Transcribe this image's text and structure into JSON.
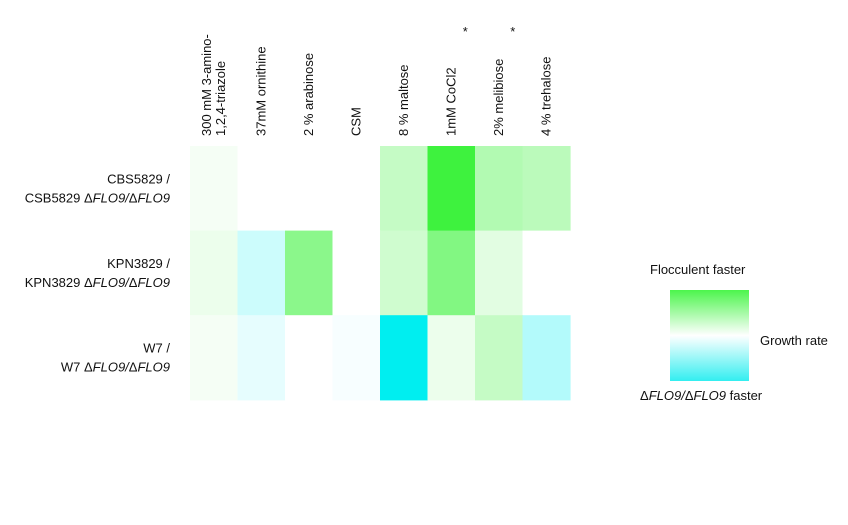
{
  "chart_data": {
    "type": "heatmap",
    "columns": [
      {
        "label": "300 mM 3-amino-1,2,4-triazole",
        "lines": [
          "300 mM 3-amino-",
          "1,2,4-triazole"
        ],
        "mark": ""
      },
      {
        "label": "37mM ornithine",
        "lines": [
          "37mM ornithine"
        ],
        "mark": ""
      },
      {
        "label": "2 % arabinose",
        "lines": [
          "2 % arabinose"
        ],
        "mark": ""
      },
      {
        "label": "CSM",
        "lines": [
          "CSM"
        ],
        "mark": ""
      },
      {
        "label": "8 % maltose",
        "lines": [
          "8 % maltose"
        ],
        "mark": ""
      },
      {
        "label": "1mM CoCl2",
        "lines": [
          "1mM CoCl2"
        ],
        "mark": "*"
      },
      {
        "label": "2% melibiose",
        "lines": [
          "2% melibiose"
        ],
        "mark": "*"
      },
      {
        "label": "4 % trehalose",
        "lines": [
          "4 % trehalose"
        ],
        "mark": ""
      }
    ],
    "rows": [
      {
        "line1": "CBS5829 /",
        "line2_prefix": "CSB5829 Δ",
        "line2_italic": "FLO9/",
        "line2_mid": "Δ",
        "line2_italic2": "FLO9"
      },
      {
        "line1": "KPN3829 /",
        "line2_prefix": "KPN3829 Δ",
        "line2_italic": "FLO9/",
        "line2_mid": "Δ",
        "line2_italic2": "FLO9"
      },
      {
        "line1": "W7 /",
        "line2_prefix": "W7 Δ",
        "line2_italic": "FLO9/",
        "line2_mid": "Δ",
        "line2_italic2": "FLO9"
      }
    ],
    "values": [
      [
        0.05,
        0.0,
        0.0,
        0.0,
        0.3,
        1.0,
        0.4,
        0.35
      ],
      [
        0.1,
        -0.2,
        0.6,
        0.0,
        0.25,
        0.65,
        0.15,
        0.0
      ],
      [
        0.05,
        -0.1,
        0.0,
        -0.03,
        -1.0,
        0.1,
        0.3,
        -0.3
      ]
    ],
    "scale": {
      "min": -1,
      "max": 1,
      "low_color": "#00eef0",
      "mid_color": "#ffffff",
      "high_color": "#3ef23e"
    },
    "legend": {
      "top": "Flocculent faster",
      "mid": "Growth rate",
      "bottom_prefix": "Δ",
      "bottom_italic1": "FLO9/",
      "bottom_mid": "Δ",
      "bottom_italic2": "FLO9",
      "bottom_suffix": " faster"
    }
  }
}
